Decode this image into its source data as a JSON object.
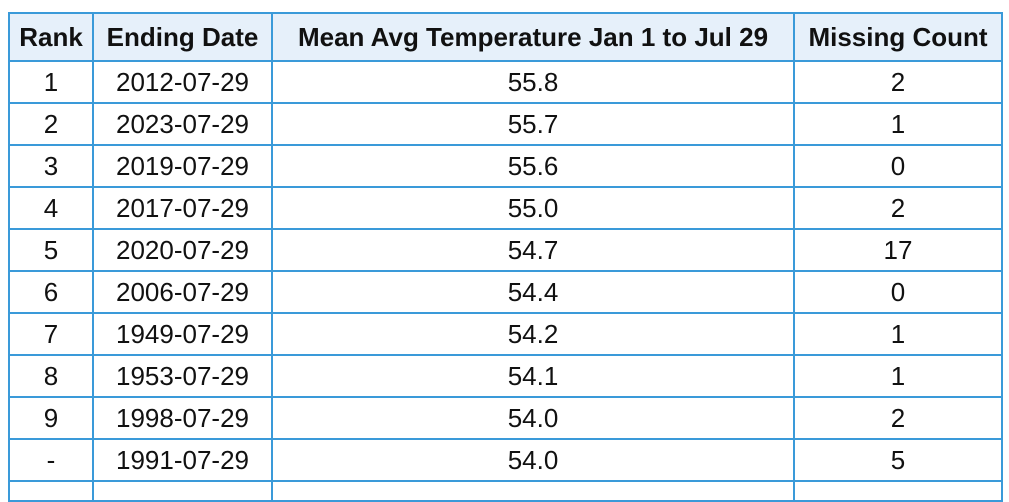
{
  "table": {
    "headers": [
      "Rank",
      "Ending Date",
      "Mean Avg Temperature Jan 1 to Jul 29",
      "Missing Count"
    ],
    "rows": [
      [
        "1",
        "2012-07-29",
        "55.8",
        "2"
      ],
      [
        "2",
        "2023-07-29",
        "55.7",
        "1"
      ],
      [
        "3",
        "2019-07-29",
        "55.6",
        "0"
      ],
      [
        "4",
        "2017-07-29",
        "55.0",
        "2"
      ],
      [
        "5",
        "2020-07-29",
        "54.7",
        "17"
      ],
      [
        "6",
        "2006-07-29",
        "54.4",
        "0"
      ],
      [
        "7",
        "1949-07-29",
        "54.2",
        "1"
      ],
      [
        "8",
        "1953-07-29",
        "54.1",
        "1"
      ],
      [
        "9",
        "1998-07-29",
        "54.0",
        "2"
      ],
      [
        "-",
        "1991-07-29",
        "54.0",
        "5"
      ]
    ]
  },
  "colors": {
    "header_background": "#e6f0fa",
    "border": "#3a9ad9",
    "text": "#111111"
  }
}
